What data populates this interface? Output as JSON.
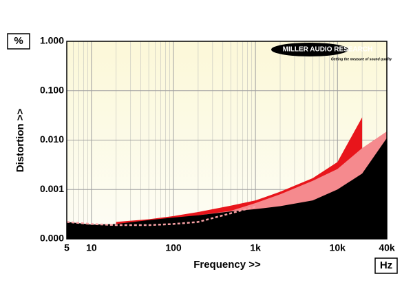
{
  "chart_data": {
    "type": "area",
    "x_label": "Frequency >>",
    "y_label": "Distortion >>",
    "y_unit": "%",
    "x_unit": "Hz",
    "logo_text": "MILLER AUDIO RESEARCH",
    "logo_tagline": "Getting the measure of sound quality",
    "x": [
      5,
      10,
      20,
      50,
      100,
      200,
      500,
      1000,
      2000,
      5000,
      10000,
      20000,
      40000
    ],
    "series": [
      {
        "color": "#e8151b",
        "values": [
          null,
          null,
          0.00022,
          0.00025,
          0.00029,
          0.00035,
          0.00047,
          0.0006,
          0.0009,
          0.0017,
          0.0036,
          0.029,
          null
        ]
      },
      {
        "color": "#f58a8e",
        "values": [
          null,
          null,
          null,
          null,
          null,
          0.0003,
          0.00037,
          0.00053,
          0.0008,
          0.0015,
          0.0026,
          0.0069,
          0.015
        ]
      },
      {
        "color": "#000000",
        "values": [
          0.00022,
          0.000195,
          0.0002,
          0.00024,
          0.00027,
          0.0003,
          0.00036,
          0.0004,
          0.00046,
          0.0006,
          0.001,
          0.0021,
          0.011
        ]
      },
      {
        "color": "#f7a0a4",
        "dashed": true,
        "values": [
          0.00022,
          0.0002,
          0.00019,
          0.00019,
          0.0002,
          0.00022,
          0.00033,
          0.00045,
          null,
          null,
          null,
          null,
          null
        ]
      }
    ],
    "xlim": [
      5,
      40000
    ],
    "ylim": [
      0.0001,
      1
    ],
    "log_x": true,
    "log_y": true,
    "grid": true,
    "xticks": [
      5,
      10,
      100,
      {
        "value": 1000,
        "label": "1k"
      },
      {
        "value": 10000,
        "label": "10k"
      },
      {
        "value": 40000,
        "label": "40k"
      }
    ],
    "yticks": [
      {
        "value": 0.0001,
        "label": "0.000"
      },
      {
        "value": 0.001,
        "label": "0.001"
      },
      {
        "value": 0.01,
        "label": "0.010"
      },
      {
        "value": 0.1,
        "label": "0.100"
      },
      {
        "value": 1,
        "label": "1.000"
      }
    ]
  }
}
